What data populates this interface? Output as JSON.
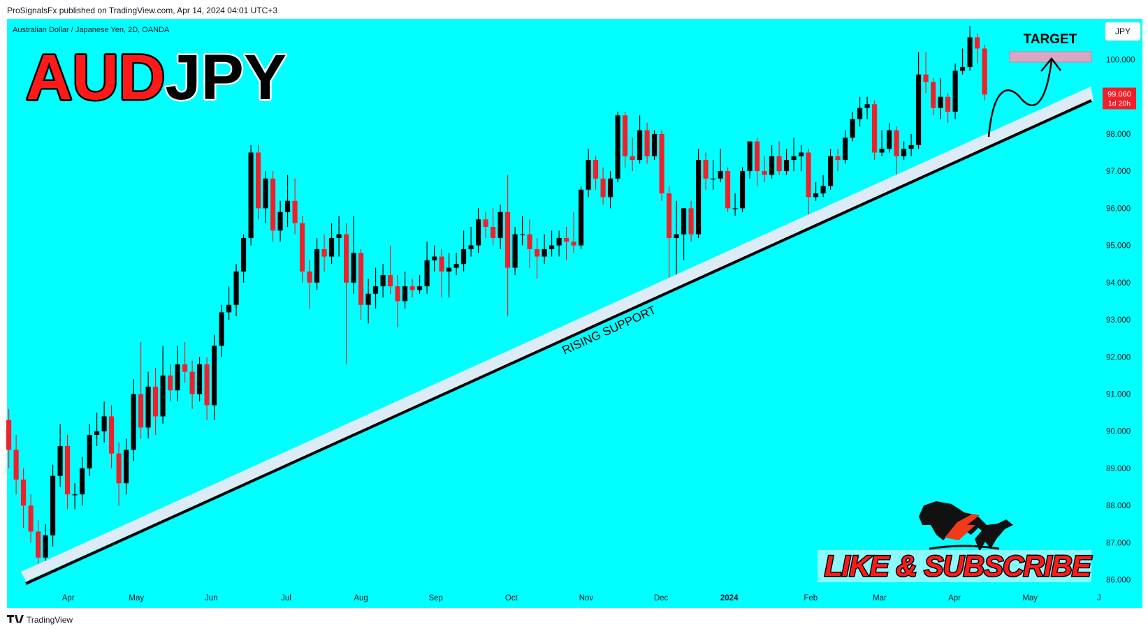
{
  "header": {
    "published": "ProSignalsFx published on TradingView.com, Apr 14, 2024 04:01 UTC+3"
  },
  "footer": {
    "brand": "TradingView"
  },
  "chart_data": {
    "type": "candlestick",
    "title": "Australian Dollar / Japanese Yen, 2D, OANDA",
    "symbol_base": "AUD",
    "symbol_quote": "JPY",
    "currency": "JPY",
    "annotations": {
      "target": "TARGET",
      "support": "RISING SUPPORT",
      "cta": "LIKE & SUBSCRIBE"
    },
    "last_price": {
      "value": 99.06,
      "label": "99.060"
    },
    "countdown": "1d 20h",
    "up_color": "#000000",
    "down_color": "#f0202a",
    "open": [
      90.3,
      89.5,
      88.7,
      88.0,
      87.3,
      86.6,
      87.2,
      88.8,
      89.6,
      88.3,
      88.3,
      89.0,
      89.9,
      90.0,
      90.4,
      89.4,
      88.6,
      89.5,
      91.0,
      90.1,
      91.2,
      90.4,
      91.5,
      91.1,
      91.8,
      91.6,
      91.0,
      91.8,
      90.7,
      92.3,
      93.2,
      93.4,
      94.3,
      95.2,
      97.5,
      96.0,
      96.8,
      95.4,
      95.9,
      96.2,
      95.6,
      94.3,
      94.0,
      94.9,
      94.7,
      95.2,
      95.3,
      94.0,
      94.8,
      93.4,
      93.7,
      93.9,
      94.2,
      93.9,
      93.5,
      93.9,
      93.8,
      93.9,
      94.6,
      94.7,
      94.3,
      94.4,
      94.5,
      94.9,
      95.0,
      95.7,
      95.5,
      95.2,
      95.9,
      94.4,
      95.3,
      95.3,
      94.9,
      94.7,
      94.9,
      95.0,
      95.2,
      95.1,
      95.0,
      96.5,
      97.3,
      96.8,
      96.3,
      96.8,
      98.5,
      97.4,
      97.3,
      98.1,
      97.4,
      98.0,
      96.4,
      95.2,
      95.3,
      96.0,
      95.3,
      97.3,
      96.8,
      96.8,
      97.0,
      96.0,
      96.0,
      97.0,
      97.8,
      97.0,
      96.9,
      97.4,
      97.0,
      97.3,
      97.4,
      97.5,
      96.3,
      96.4,
      96.6,
      97.4,
      97.3,
      97.9,
      98.4,
      98.7,
      98.8,
      97.5,
      97.6,
      98.1,
      97.4,
      97.6,
      97.7,
      99.6,
      99.4,
      98.7,
      99.0,
      98.6,
      99.7,
      99.8,
      100.6,
      100.3
    ],
    "high": [
      90.6,
      89.9,
      89.0,
      88.3,
      87.6,
      87.5,
      89.1,
      90.2,
      89.9,
      88.6,
      89.3,
      90.2,
      90.5,
      90.8,
      90.7,
      89.7,
      89.8,
      91.4,
      92.4,
      91.6,
      91.7,
      92.3,
      91.8,
      92.3,
      92.4,
      91.9,
      92.0,
      92.0,
      92.6,
      93.4,
      93.9,
      94.5,
      95.3,
      97.7,
      97.7,
      97.0,
      97.0,
      96.2,
      96.9,
      96.8,
      95.8,
      94.6,
      95.2,
      95.3,
      95.6,
      95.8,
      95.6,
      95.8,
      94.9,
      94.1,
      94.4,
      94.5,
      95.0,
      94.2,
      94.3,
      94.1,
      94.2,
      95.1,
      95.0,
      94.9,
      94.8,
      94.8,
      95.4,
      95.5,
      96.0,
      95.9,
      96.0,
      96.1,
      96.9,
      95.5,
      95.8,
      95.7,
      95.2,
      95.3,
      95.4,
      95.4,
      95.5,
      95.9,
      96.6,
      97.6,
      97.4,
      97.1,
      97.0,
      98.6,
      98.6,
      97.9,
      98.5,
      98.3,
      98.1,
      98.1,
      96.6,
      96.2,
      96.0,
      96.2,
      97.6,
      97.5,
      97.3,
      97.6,
      97.1,
      96.4,
      97.1,
      97.8,
      97.9,
      97.4,
      97.7,
      97.8,
      97.6,
      97.9,
      97.7,
      97.6,
      96.7,
      96.9,
      97.6,
      97.6,
      98.1,
      98.6,
      99.0,
      99.0,
      98.9,
      98.1,
      98.3,
      98.2,
      97.8,
      98.0,
      100.2,
      100.2,
      99.5,
      99.5,
      99.1,
      99.9,
      100.3,
      100.9,
      100.7,
      100.4
    ],
    "low": [
      89.0,
      88.3,
      87.4,
      87.0,
      86.1,
      86.3,
      86.9,
      88.5,
      87.9,
      87.9,
      88.0,
      88.8,
      89.6,
      89.7,
      89.0,
      88.0,
      88.3,
      89.2,
      89.8,
      89.8,
      89.9,
      90.2,
      90.8,
      90.8,
      91.3,
      90.6,
      90.8,
      90.3,
      90.3,
      92.0,
      93.0,
      93.1,
      94.0,
      95.0,
      95.7,
      95.6,
      95.1,
      95.1,
      95.5,
      95.3,
      94.0,
      93.3,
      93.8,
      94.3,
      94.5,
      94.7,
      91.8,
      93.7,
      93.0,
      92.9,
      93.3,
      93.6,
      93.7,
      92.8,
      93.3,
      93.6,
      93.7,
      93.7,
      94.3,
      93.6,
      93.6,
      94.2,
      94.3,
      94.7,
      94.8,
      95.2,
      95.0,
      94.9,
      93.1,
      94.2,
      95.0,
      94.4,
      94.1,
      94.5,
      94.7,
      94.7,
      94.6,
      94.8,
      94.9,
      96.3,
      96.5,
      96.1,
      96.0,
      96.7,
      97.1,
      97.0,
      97.2,
      97.2,
      97.3,
      96.2,
      93.8,
      94.2,
      94.6,
      95.1,
      95.2,
      96.5,
      96.5,
      96.7,
      95.9,
      95.8,
      95.9,
      96.8,
      96.6,
      96.7,
      96.8,
      96.9,
      96.9,
      97.0,
      97.0,
      95.6,
      96.2,
      96.3,
      96.5,
      97.0,
      97.2,
      97.8,
      98.2,
      98.4,
      97.3,
      97.4,
      97.5,
      96.9,
      97.3,
      97.4,
      97.6,
      99.1,
      98.5,
      98.4,
      98.3,
      98.4,
      99.6,
      99.7,
      99.9,
      98.9
    ],
    "close": [
      89.5,
      88.7,
      88.0,
      87.3,
      86.6,
      87.2,
      88.8,
      89.6,
      88.3,
      88.3,
      89.0,
      89.9,
      90.0,
      90.4,
      89.4,
      88.6,
      89.5,
      91.0,
      90.1,
      91.2,
      90.4,
      91.5,
      91.1,
      91.8,
      91.6,
      91.0,
      91.8,
      90.7,
      92.3,
      93.2,
      93.4,
      94.3,
      95.2,
      97.5,
      96.0,
      96.8,
      95.4,
      95.9,
      96.2,
      95.6,
      94.3,
      94.0,
      94.9,
      94.7,
      95.2,
      95.3,
      94.0,
      94.8,
      93.4,
      93.7,
      93.9,
      94.2,
      93.9,
      93.5,
      93.9,
      93.8,
      93.9,
      94.6,
      94.7,
      94.3,
      94.4,
      94.5,
      94.9,
      95.0,
      95.7,
      95.5,
      95.2,
      95.9,
      94.4,
      95.3,
      95.3,
      94.9,
      94.7,
      94.9,
      95.0,
      95.2,
      95.1,
      95.0,
      96.5,
      97.3,
      96.8,
      96.3,
      96.8,
      98.5,
      97.4,
      97.3,
      98.1,
      97.4,
      98.0,
      96.4,
      95.2,
      95.3,
      96.0,
      95.3,
      97.3,
      96.8,
      96.8,
      97.0,
      96.0,
      96.0,
      97.0,
      97.8,
      97.0,
      96.9,
      97.4,
      97.0,
      97.3,
      97.4,
      97.5,
      96.3,
      96.4,
      96.6,
      97.4,
      97.3,
      97.9,
      98.4,
      98.7,
      98.8,
      97.5,
      97.6,
      98.1,
      97.4,
      97.6,
      97.7,
      99.6,
      99.4,
      98.7,
      99.0,
      98.6,
      99.7,
      99.8,
      100.6,
      100.3,
      99.06
    ],
    "xlim": [
      -0.2,
      148.8
    ],
    "xticks": [
      {
        "value": 8.1,
        "label": "Apr"
      },
      {
        "value": 17.4,
        "label": "May"
      },
      {
        "value": 27.6,
        "label": "Jun"
      },
      {
        "value": 37.8,
        "label": "Jul"
      },
      {
        "value": 48,
        "label": "Aug"
      },
      {
        "value": 58.2,
        "label": "Sep"
      },
      {
        "value": 68.5,
        "label": "Oct"
      },
      {
        "value": 78.7,
        "label": "Nov"
      },
      {
        "value": 88.9,
        "label": "Dec"
      },
      {
        "value": 98.2,
        "label": "2024"
      },
      {
        "value": 109.3,
        "label": "Feb"
      },
      {
        "value": 118.7,
        "label": "Mar"
      },
      {
        "value": 128.9,
        "label": "Apr"
      },
      {
        "value": 139.2,
        "label": "May"
      },
      {
        "value": 148.6,
        "label": "J"
      }
    ],
    "ylim": [
      85.3,
      101.0
    ],
    "yticks": [
      {
        "value": 86,
        "label": "86.000"
      },
      {
        "value": 87,
        "label": "87.000"
      },
      {
        "value": 88,
        "label": "88.000"
      },
      {
        "value": 89,
        "label": "89.000"
      },
      {
        "value": 90,
        "label": "90.000"
      },
      {
        "value": 91,
        "label": "91.000"
      },
      {
        "value": 92,
        "label": "92.000"
      },
      {
        "value": 93,
        "label": "93.000"
      },
      {
        "value": 94,
        "label": "94.000"
      },
      {
        "value": 95,
        "label": "95.000"
      },
      {
        "value": 96,
        "label": "96.000"
      },
      {
        "value": 97,
        "label": "97.000"
      },
      {
        "value": 98,
        "label": "98.000"
      },
      {
        "value": 99,
        "label": "99.000"
      },
      {
        "value": 100,
        "label": "100.000"
      }
    ]
  }
}
